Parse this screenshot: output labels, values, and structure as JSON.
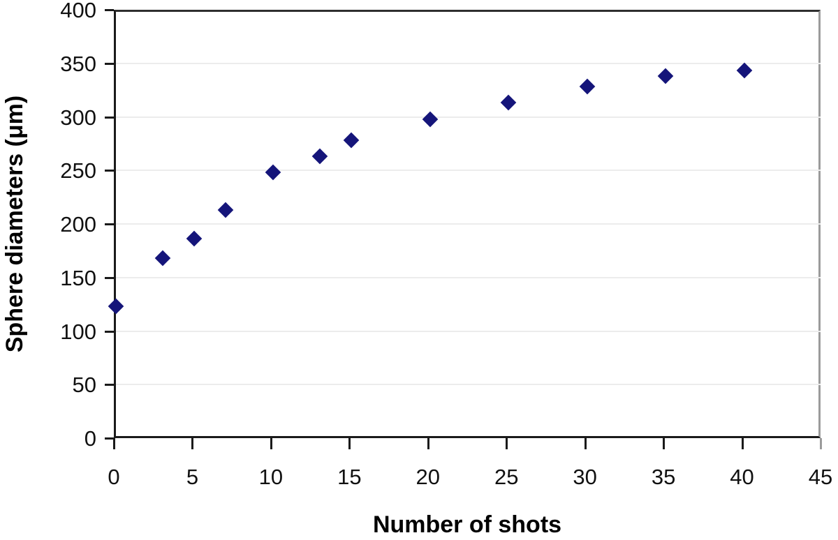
{
  "chart_data": {
    "type": "scatter",
    "title": "",
    "xlabel": "Number of shots",
    "ylabel": "Sphere diameters (μm)",
    "x": [
      0,
      3,
      5,
      7,
      10,
      13,
      15,
      20,
      25,
      30,
      35,
      40
    ],
    "y": [
      125,
      170,
      188,
      215,
      250,
      265,
      280,
      300,
      315,
      330,
      340,
      345
    ],
    "xlim": [
      0,
      45
    ],
    "ylim": [
      0,
      400
    ],
    "xticks": [
      0,
      5,
      10,
      15,
      20,
      25,
      30,
      35,
      40,
      45
    ],
    "yticks": [
      0,
      50,
      100,
      150,
      200,
      250,
      300,
      350,
      400
    ],
    "grid": "horizontal gridlines only, at every y tick",
    "legend_position": "none",
    "marker_shape": "diamond",
    "marker_size_px": 23,
    "colors": {
      "marker": "#15157a",
      "axis_line": "#1a1a1a",
      "gridline": "#ececec",
      "frame_top": "#2e2e2e",
      "frame_right": "#9b9b9b",
      "tick_label": "#111111",
      "axis_title": "#000000",
      "background": "#ffffff"
    }
  }
}
